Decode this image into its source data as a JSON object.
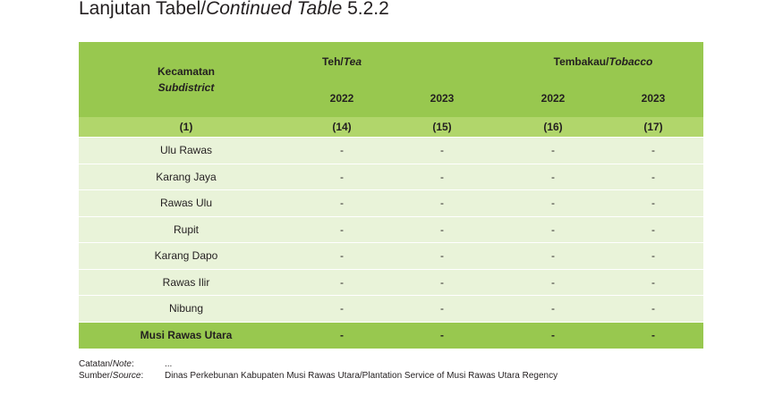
{
  "title": {
    "prefix": "Lanjutan Tabel/",
    "italic": "Continued Table",
    "number": "5.2.2"
  },
  "header": {
    "kecamatan": "Kecamatan",
    "subdistrict": "Subdistrict",
    "group1": {
      "id": "Teh/",
      "en": "Tea"
    },
    "group2": {
      "id": "Tembakau/",
      "en": "Tobacco"
    },
    "years": [
      "2022",
      "2023",
      "2022",
      "2023"
    ]
  },
  "col_numbers": [
    "(1)",
    "(14)",
    "(15)",
    "(16)",
    "(17)"
  ],
  "rows": [
    {
      "name": "Ulu Rawas",
      "values": [
        "-",
        "-",
        "-",
        "-"
      ]
    },
    {
      "name": "Karang Jaya",
      "values": [
        "-",
        "-",
        "-",
        "-"
      ]
    },
    {
      "name": "Rawas Ulu",
      "values": [
        "-",
        "-",
        "-",
        "-"
      ]
    },
    {
      "name": "Rupit",
      "values": [
        "-",
        "-",
        "-",
        "-"
      ]
    },
    {
      "name": "Karang Dapo",
      "values": [
        "-",
        "-",
        "-",
        "-"
      ]
    },
    {
      "name": "Rawas Ilir",
      "values": [
        "-",
        "-",
        "-",
        "-"
      ]
    },
    {
      "name": "Nibung",
      "values": [
        "-",
        "-",
        "-",
        "-"
      ]
    }
  ],
  "total": {
    "name": "Musi Rawas Utara",
    "values": [
      "-",
      "-",
      "-",
      "-"
    ]
  },
  "notes": {
    "note_label_id": "Catatan/",
    "note_label_en": "Note",
    "note_value": "...",
    "source_label_id": "Sumber/",
    "source_label_en": "Source",
    "source_value": "Dinas Perkebunan Kabupaten Musi Rawas Utara/Plantation Service of Musi Rawas Utara Regency"
  }
}
